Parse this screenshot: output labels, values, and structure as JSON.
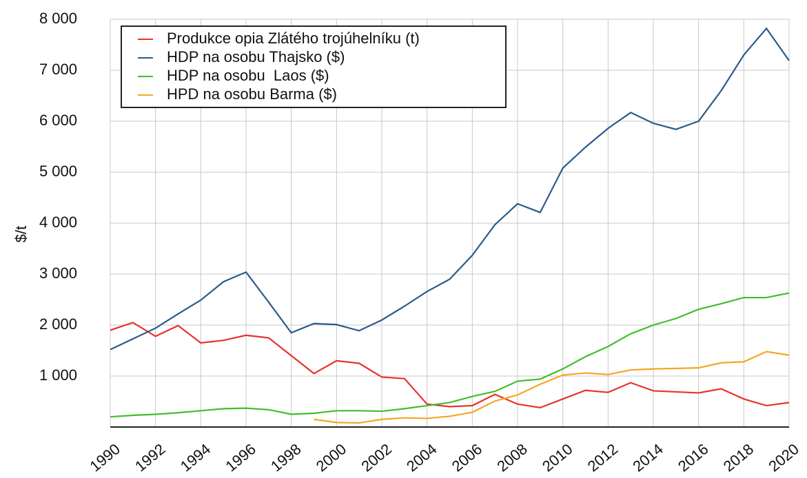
{
  "chart_data": {
    "type": "line",
    "y_label": "$/t",
    "x": [
      1990,
      1991,
      1992,
      1993,
      1994,
      1995,
      1996,
      1997,
      1998,
      1999,
      2000,
      2001,
      2002,
      2003,
      2004,
      2005,
      2006,
      2007,
      2008,
      2009,
      2010,
      2011,
      2012,
      2013,
      2014,
      2015,
      2016,
      2017,
      2018,
      2019,
      2020
    ],
    "series": [
      {
        "name": "Produkce opia Zlátého trojúhelníku (t)",
        "color": "#e8312a",
        "values": [
          1900,
          2050,
          1780,
          1990,
          1650,
          1700,
          1800,
          1750,
          1400,
          1050,
          1300,
          1250,
          980,
          950,
          450,
          400,
          420,
          640,
          450,
          380,
          550,
          720,
          680,
          870,
          710,
          690,
          670,
          750,
          550,
          420,
          480
        ]
      },
      {
        "name": "HDP na osobu Thajsko ($)",
        "color": "#2a5a8c",
        "values": [
          1520,
          1730,
          1940,
          2220,
          2490,
          2850,
          3040,
          2450,
          1850,
          2030,
          2010,
          1890,
          2100,
          2370,
          2660,
          2900,
          3370,
          3970,
          4380,
          4210,
          5080,
          5490,
          5860,
          6170,
          5960,
          5840,
          6000,
          6600,
          7300,
          7820,
          7190
        ]
      },
      {
        "name": "HDP na osobu  Laos ($)",
        "color": "#3fbf2a",
        "values": [
          200,
          230,
          250,
          280,
          320,
          360,
          370,
          340,
          250,
          270,
          320,
          320,
          310,
          360,
          420,
          480,
          600,
          700,
          900,
          940,
          1140,
          1380,
          1580,
          1830,
          2000,
          2130,
          2310,
          2420,
          2540,
          2540,
          2630
        ]
      },
      {
        "name": "HPD na osobu Barma ($)",
        "color": "#f5a623",
        "values": [
          null,
          null,
          null,
          null,
          null,
          null,
          null,
          null,
          null,
          150,
          90,
          80,
          150,
          180,
          170,
          210,
          290,
          510,
          630,
          840,
          1020,
          1060,
          1030,
          1120,
          1140,
          1150,
          1160,
          1260,
          1280,
          1480,
          1410
        ]
      }
    ],
    "xlim": [
      1990,
      2020
    ],
    "xticks": [
      1990,
      1992,
      1994,
      1996,
      1998,
      2000,
      2002,
      2004,
      2006,
      2008,
      2010,
      2012,
      2014,
      2016,
      2018,
      2020
    ],
    "ylim": [
      0,
      8000
    ],
    "yticks": [
      {
        "value": 1000,
        "label": "1 000"
      },
      {
        "value": 2000,
        "label": "2 000"
      },
      {
        "value": 3000,
        "label": "3 000"
      },
      {
        "value": 4000,
        "label": "4 000"
      },
      {
        "value": 5000,
        "label": "5 000"
      },
      {
        "value": 6000,
        "label": "6 000"
      },
      {
        "value": 7000,
        "label": "7 000"
      },
      {
        "value": 8000,
        "label": "8 000"
      }
    ],
    "grid": true,
    "legend": "upper left"
  }
}
